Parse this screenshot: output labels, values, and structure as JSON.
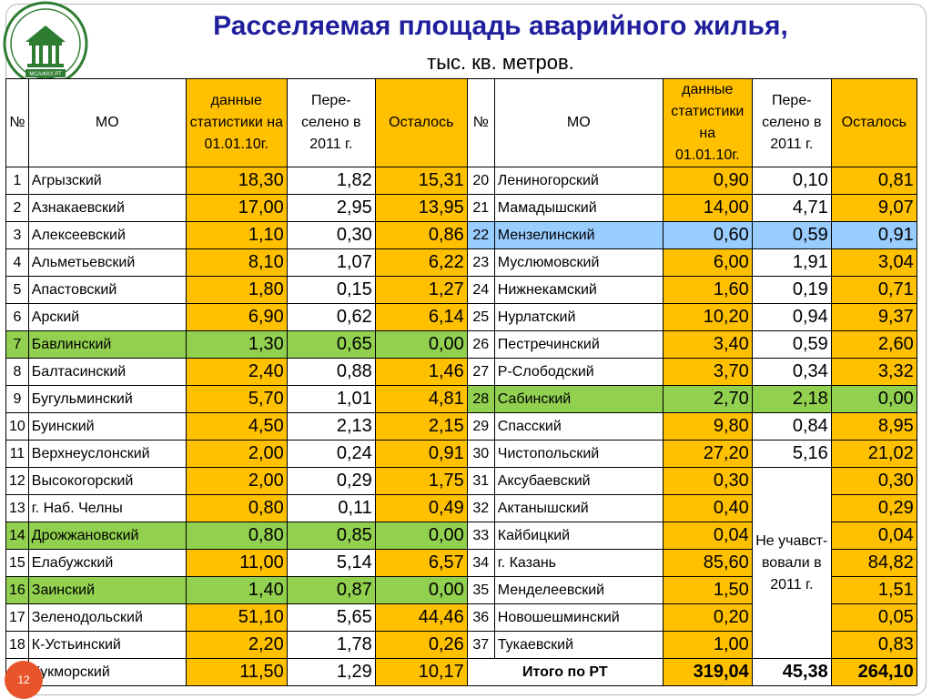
{
  "title": "Расселяемая площадь аварийного жилья,",
  "subtitle": "тыс. кв. метров.",
  "logo_text": "МСАЖКХ РТ",
  "page_number": "12",
  "headers": {
    "num": "№",
    "mo": "МО",
    "stat": "данные статистики на 01.01.10г.",
    "resettled": "Пере-селено в 2011 г.",
    "remaining": "Осталось"
  },
  "left_rows": [
    {
      "n": "1",
      "name": "Агрызский",
      "stat": "18,30",
      "res": "1,82",
      "rem": "15,31",
      "hl": ""
    },
    {
      "n": "2",
      "name": "Азнакаевский",
      "stat": "17,00",
      "res": "2,95",
      "rem": "13,95",
      "hl": ""
    },
    {
      "n": "3",
      "name": "Алексеевский",
      "stat": "1,10",
      "res": "0,30",
      "rem": "0,86",
      "hl": ""
    },
    {
      "n": "4",
      "name": "Альметьевский",
      "stat": "8,10",
      "res": "1,07",
      "rem": "6,22",
      "hl": ""
    },
    {
      "n": "5",
      "name": "Апастовский",
      "stat": "1,80",
      "res": "0,15",
      "rem": "1,27",
      "hl": ""
    },
    {
      "n": "6",
      "name": "Арский",
      "stat": "6,90",
      "res": "0,62",
      "rem": "6,14",
      "hl": ""
    },
    {
      "n": "7",
      "name": "Бавлинский",
      "stat": "1,30",
      "res": "0,65",
      "rem": "0,00",
      "hl": "green"
    },
    {
      "n": "8",
      "name": "Балтасинский",
      "stat": "2,40",
      "res": "0,88",
      "rem": "1,46",
      "hl": ""
    },
    {
      "n": "9",
      "name": "Бугульминский",
      "stat": "5,70",
      "res": "1,01",
      "rem": "4,81",
      "hl": ""
    },
    {
      "n": "10",
      "name": "Буинский",
      "stat": "4,50",
      "res": "2,13",
      "rem": "2,15",
      "hl": ""
    },
    {
      "n": "11",
      "name": "Верхнеуслонский",
      "stat": "2,00",
      "res": "0,24",
      "rem": "0,91",
      "hl": ""
    },
    {
      "n": "12",
      "name": "Высокогорский",
      "stat": "2,00",
      "res": "0,29",
      "rem": "1,75",
      "hl": ""
    },
    {
      "n": "13",
      "name": "г. Наб. Челны",
      "stat": "0,80",
      "res": "0,11",
      "rem": "0,49",
      "hl": ""
    },
    {
      "n": "14",
      "name": "Дрожжановский",
      "stat": "0,80",
      "res": "0,85",
      "rem": "0,00",
      "hl": "green"
    },
    {
      "n": "15",
      "name": "Елабужский",
      "stat": "11,00",
      "res": "5,14",
      "rem": "6,57",
      "hl": ""
    },
    {
      "n": "16",
      "name": "Заинский",
      "stat": "1,40",
      "res": "0,87",
      "rem": "0,00",
      "hl": "green"
    },
    {
      "n": "17",
      "name": "Зеленодольский",
      "stat": "51,10",
      "res": "5,65",
      "rem": "44,46",
      "hl": ""
    },
    {
      "n": "18",
      "name": "К-Устьинский",
      "stat": "2,20",
      "res": "1,78",
      "rem": "0,26",
      "hl": ""
    },
    {
      "n": "19",
      "name": "Кукморский",
      "stat": "11,50",
      "res": "1,29",
      "rem": "10,17",
      "hl": ""
    }
  ],
  "right_rows": [
    {
      "n": "20",
      "name": "Лениногорский",
      "stat": "0,90",
      "res": "0,10",
      "rem": "0,81",
      "hl": ""
    },
    {
      "n": "21",
      "name": "Мамадышский",
      "stat": "14,00",
      "res": "4,71",
      "rem": "9,07",
      "hl": ""
    },
    {
      "n": "22",
      "name": "Мензелинский",
      "stat": "0,60",
      "res": "0,59",
      "rem": "0,91",
      "hl": "blue"
    },
    {
      "n": "23",
      "name": "Муслюмовский",
      "stat": "6,00",
      "res": "1,91",
      "rem": "3,04",
      "hl": ""
    },
    {
      "n": "24",
      "name": "Нижнекамский",
      "stat": "1,60",
      "res": "0,19",
      "rem": "0,71",
      "hl": ""
    },
    {
      "n": "25",
      "name": "Нурлатский",
      "stat": "10,20",
      "res": "0,94",
      "rem": "9,37",
      "hl": ""
    },
    {
      "n": "26",
      "name": "Пестречинский",
      "stat": "3,40",
      "res": "0,59",
      "rem": "2,60",
      "hl": ""
    },
    {
      "n": "27",
      "name": "Р-Слободский",
      "stat": "3,70",
      "res": "0,34",
      "rem": "3,32",
      "hl": ""
    },
    {
      "n": "28",
      "name": "Сабинский",
      "stat": "2,70",
      "res": "2,18",
      "rem": "0,00",
      "hl": "green"
    },
    {
      "n": "29",
      "name": "Спасский",
      "stat": "9,80",
      "res": "0,84",
      "rem": "8,95",
      "hl": ""
    },
    {
      "n": "30",
      "name": "Чистопольский",
      "stat": "27,20",
      "res": "5,16",
      "rem": "21,02",
      "hl": ""
    },
    {
      "n": "31",
      "name": "Аксубаевский",
      "stat": "0,30",
      "res": "",
      "rem": "0,30",
      "hl": ""
    },
    {
      "n": "32",
      "name": "Актанышский",
      "stat": "0,40",
      "res": "",
      "rem": "0,29",
      "hl": ""
    },
    {
      "n": "33",
      "name": "Кайбицкий",
      "stat": "0,04",
      "res": "",
      "rem": "0,04",
      "hl": ""
    },
    {
      "n": "34",
      "name": "г. Казань",
      "stat": "85,60",
      "res": "",
      "rem": "84,82",
      "hl": ""
    },
    {
      "n": "35",
      "name": "Менделеевский",
      "stat": "1,50",
      "res": "",
      "rem": "1,51",
      "hl": ""
    },
    {
      "n": "36",
      "name": "Новошешминский",
      "stat": "0,20",
      "res": "",
      "rem": "0,05",
      "hl": ""
    },
    {
      "n": "37",
      "name": "Тукаевский",
      "stat": "1,00",
      "res": "",
      "rem": "0,83",
      "hl": ""
    }
  ],
  "not_participated": "Не учавст-вовали в 2011 г.",
  "total": {
    "label": "Итого по РТ",
    "stat": "319,04",
    "res": "45,38",
    "rem": "264,10"
  }
}
